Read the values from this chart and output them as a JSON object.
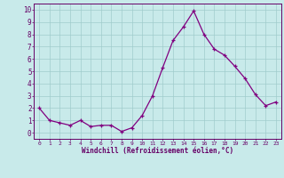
{
  "x": [
    0,
    1,
    2,
    3,
    4,
    5,
    6,
    7,
    8,
    9,
    10,
    11,
    12,
    13,
    14,
    15,
    16,
    17,
    18,
    19,
    20,
    21,
    22,
    23
  ],
  "y": [
    2.0,
    1.0,
    0.8,
    0.6,
    1.0,
    0.5,
    0.6,
    0.6,
    0.1,
    0.4,
    1.4,
    3.0,
    5.3,
    7.5,
    8.6,
    9.9,
    8.0,
    6.8,
    6.3,
    5.4,
    4.4,
    3.1,
    2.2,
    2.5
  ],
  "line_color": "#800080",
  "marker": "+",
  "marker_color": "#800080",
  "bg_color": "#c8eaea",
  "grid_color": "#a0cccc",
  "xlabel": "Windchill (Refroidissement éolien,°C)",
  "ylabel": "",
  "xlim": [
    -0.5,
    23.5
  ],
  "ylim": [
    -0.5,
    10.5
  ],
  "yticks": [
    0,
    1,
    2,
    3,
    4,
    5,
    6,
    7,
    8,
    9,
    10
  ],
  "xticks": [
    0,
    1,
    2,
    3,
    4,
    5,
    6,
    7,
    8,
    9,
    10,
    11,
    12,
    13,
    14,
    15,
    16,
    17,
    18,
    19,
    20,
    21,
    22,
    23
  ],
  "axis_label_color": "#660066",
  "tick_color": "#660066",
  "spine_color": "#660066"
}
